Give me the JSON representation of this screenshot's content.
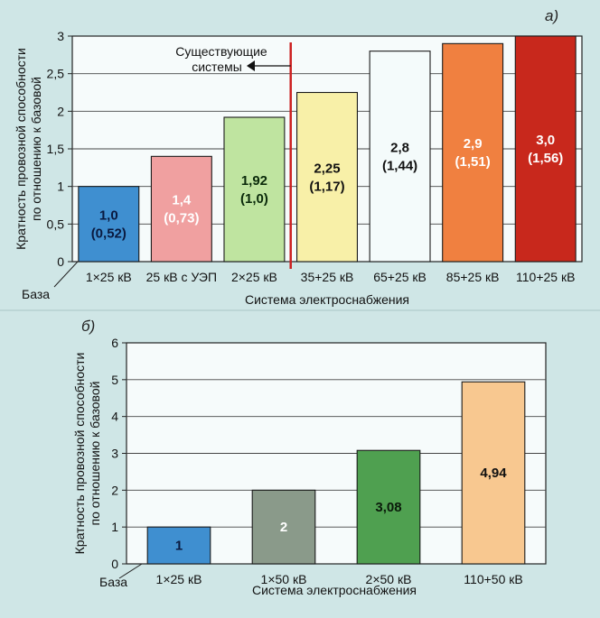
{
  "chart_data": [
    {
      "type": "bar",
      "panel_label": "а)",
      "ylabel": "Кратность провозной способности по отношению к базовой",
      "ylabel_lines": [
        "Кратность провозной способности",
        "по отношению к базовой"
      ],
      "xlabel": "Система электроснабжения",
      "ylim": [
        0,
        3
      ],
      "yticks": [
        0,
        0.5,
        1,
        1.5,
        2,
        2.5,
        3
      ],
      "ytick_labels": [
        "0",
        "0,5",
        "1",
        "1,5",
        "2",
        "2,5",
        "3"
      ],
      "categories": [
        "1×25 кВ",
        "25 кВ с УЭП",
        "2×25 кВ",
        "35+25 кВ",
        "65+25 кВ",
        "85+25 кВ",
        "110+25 кВ"
      ],
      "values": [
        1.0,
        1.4,
        1.92,
        2.25,
        2.8,
        2.9,
        3.0
      ],
      "secondary_values": [
        0.52,
        0.73,
        1.0,
        1.17,
        1.44,
        1.51,
        1.56
      ],
      "data_labels": [
        [
          "1,0",
          "(0,52)"
        ],
        [
          "1,4",
          "(0,73)"
        ],
        [
          "1,92",
          "(1,0)"
        ],
        [
          "2,25",
          "(1,17)"
        ],
        [
          "2,8",
          "(1,44)"
        ],
        [
          "2,9",
          "(1,51)"
        ],
        [
          "3,0",
          "(1,56)"
        ]
      ],
      "bar_colors": [
        "#3f8fd0",
        "#f0a0a0",
        "#bfe4a0",
        "#f8f0a8",
        "#f4fbfb",
        "#f08040",
        "#c8281c"
      ],
      "label_colors": [
        "#0a1a40",
        "#ffffff",
        "#0a2a0a",
        "#111111",
        "#111111",
        "#ffffff",
        "#ffffff"
      ],
      "annotation_lines": [
        "Существующие",
        "системы"
      ],
      "base_label": "База",
      "divider_color": "#cc2020"
    },
    {
      "type": "bar",
      "panel_label": "б)",
      "ylabel": "Кратность провозной способности по отношению к базовой",
      "ylabel_lines": [
        "Кратность провозной способности",
        "по отношению к базовой"
      ],
      "xlabel": "Система электроснабжения",
      "ylim": [
        0,
        6
      ],
      "yticks": [
        0,
        1,
        2,
        3,
        4,
        5,
        6
      ],
      "ytick_labels": [
        "0",
        "1",
        "2",
        "3",
        "4",
        "5",
        "6"
      ],
      "categories": [
        "1×25 кВ",
        "1×50 кВ",
        "2×50 кВ",
        "110+50 кВ"
      ],
      "values": [
        1,
        2,
        3.08,
        4.94
      ],
      "data_labels": [
        [
          "1"
        ],
        [
          "2"
        ],
        [
          "3,08"
        ],
        [
          "4,94"
        ]
      ],
      "bar_colors": [
        "#3f8fd0",
        "#8a9a8a",
        "#4fa050",
        "#f8c890"
      ],
      "label_colors": [
        "#0a1a40",
        "#ffffff",
        "#0a1a0a",
        "#111111"
      ],
      "base_label": "База"
    }
  ]
}
